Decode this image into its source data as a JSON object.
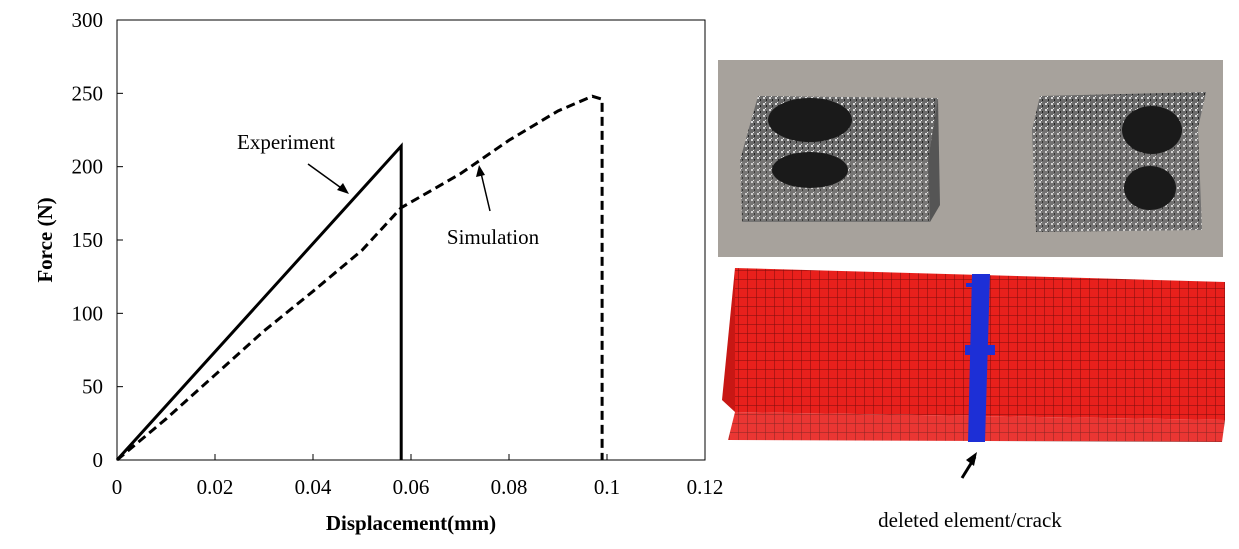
{
  "chart_data": {
    "type": "line",
    "x_label": "Displacement(mm)",
    "y_label": "Force (N)",
    "xlim": [
      0,
      0.12
    ],
    "ylim": [
      0,
      300
    ],
    "xticks": [
      0,
      0.02,
      0.04,
      0.06,
      0.08,
      0.1,
      0.12
    ],
    "yticks": [
      0,
      50,
      100,
      150,
      200,
      250,
      300
    ],
    "series": [
      {
        "name": "Experiment",
        "color": "#000000",
        "line_style": "solid",
        "x": [
          0,
          0.058,
          0.058
        ],
        "values": [
          0,
          214,
          0
        ]
      },
      {
        "name": "Simulation",
        "color": "#000000",
        "line_style": "dashed",
        "x": [
          0,
          0.01,
          0.02,
          0.03,
          0.04,
          0.05,
          0.058,
          0.07,
          0.08,
          0.09,
          0.097,
          0.099,
          0.099
        ],
        "values": [
          0,
          28,
          58,
          88,
          115,
          143,
          172,
          195,
          218,
          238,
          248,
          246,
          0
        ]
      }
    ]
  },
  "mesh_caption": "deleted element/crack"
}
